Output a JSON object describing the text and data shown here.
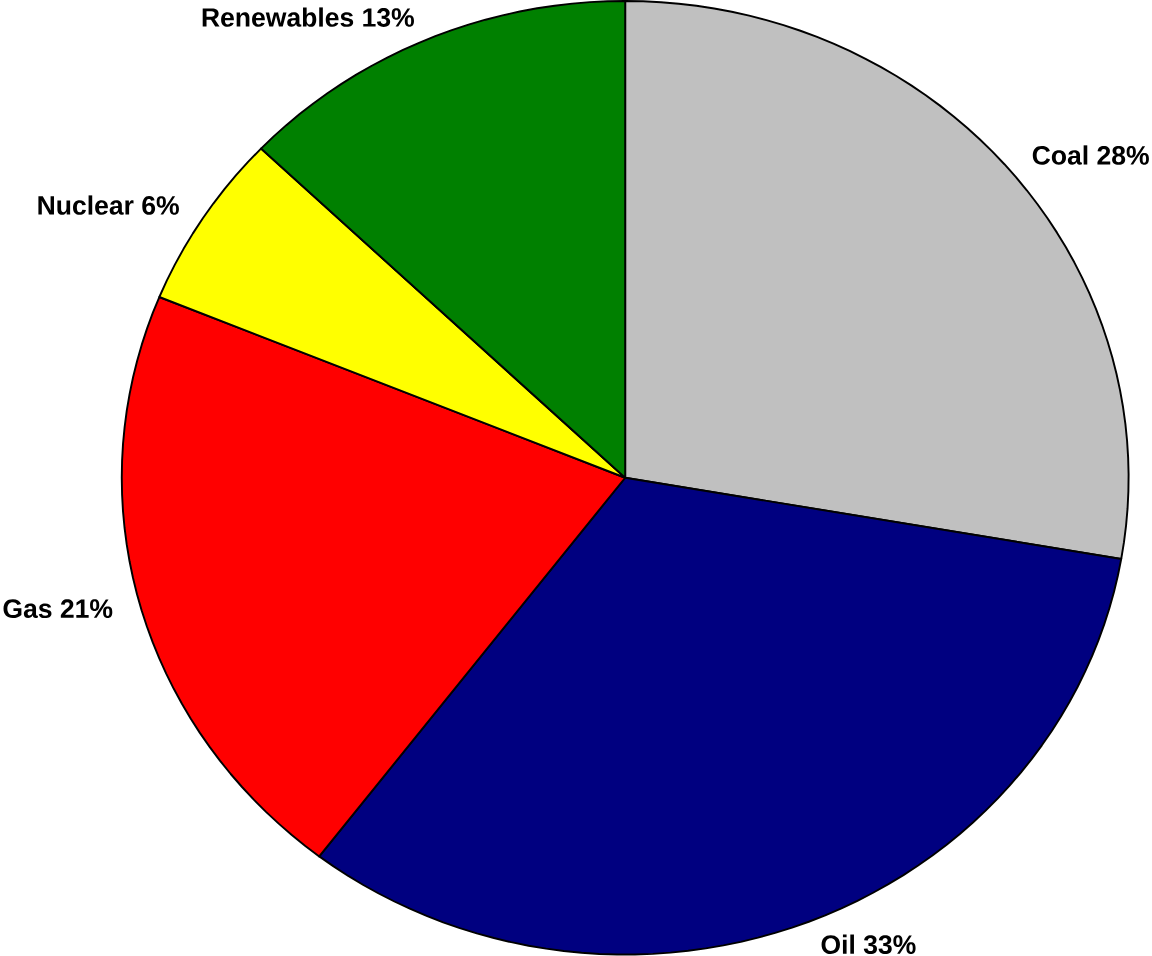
{
  "chart_data": {
    "type": "pie",
    "categories": [
      "Coal",
      "Oil",
      "Gas",
      "Nuclear",
      "Renewables"
    ],
    "values": [
      28,
      33,
      21,
      6,
      13
    ],
    "value_labels": [
      "28%",
      "33%",
      "21%",
      "6%",
      "13%"
    ],
    "colors": [
      "#c0c0c0",
      "#000080",
      "#ff0000",
      "#ffff00",
      "#008000"
    ]
  }
}
